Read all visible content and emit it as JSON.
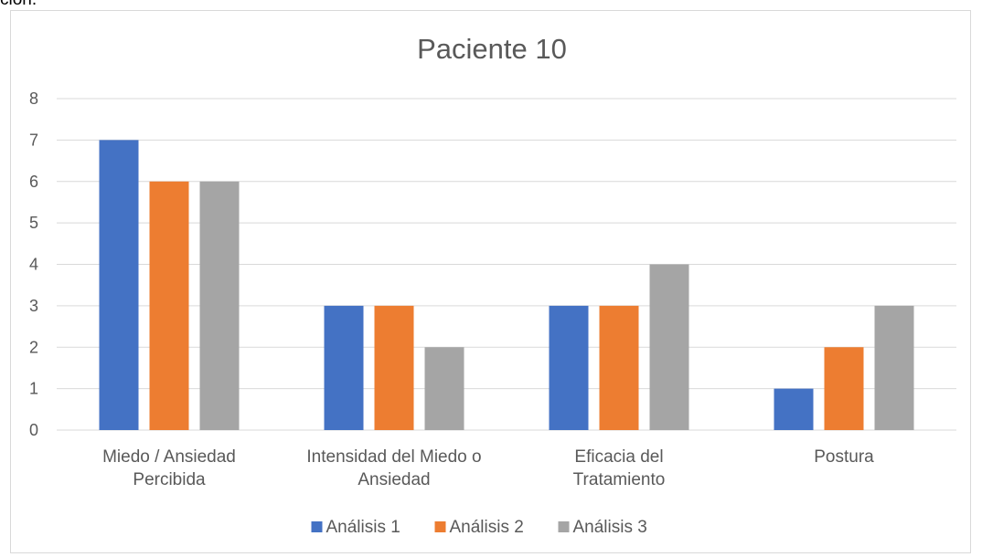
{
  "page": {
    "top_text": "ción."
  },
  "chart_data": {
    "type": "bar",
    "title": "Paciente 10",
    "xlabel": "",
    "ylabel": "",
    "categories": [
      [
        "Miedo / Ansiedad",
        "Percibida"
      ],
      [
        "Intensidad del Miedo o",
        "Ansiedad"
      ],
      [
        "Eficacia del",
        "Tratamiento"
      ],
      [
        "Postura"
      ]
    ],
    "series": [
      {
        "name": "Análisis 1",
        "color": "#4472c4",
        "values": [
          7,
          3,
          3,
          1
        ]
      },
      {
        "name": "Análisis 2",
        "color": "#ed7d31",
        "values": [
          6,
          3,
          3,
          2
        ]
      },
      {
        "name": "Análisis 3",
        "color": "#a5a5a5",
        "values": [
          6,
          2,
          4,
          3
        ]
      }
    ],
    "ylim": [
      0,
      8
    ],
    "yticks": [
      0,
      1,
      2,
      3,
      4,
      5,
      6,
      7,
      8
    ],
    "grid": true,
    "legend": "bottom"
  }
}
